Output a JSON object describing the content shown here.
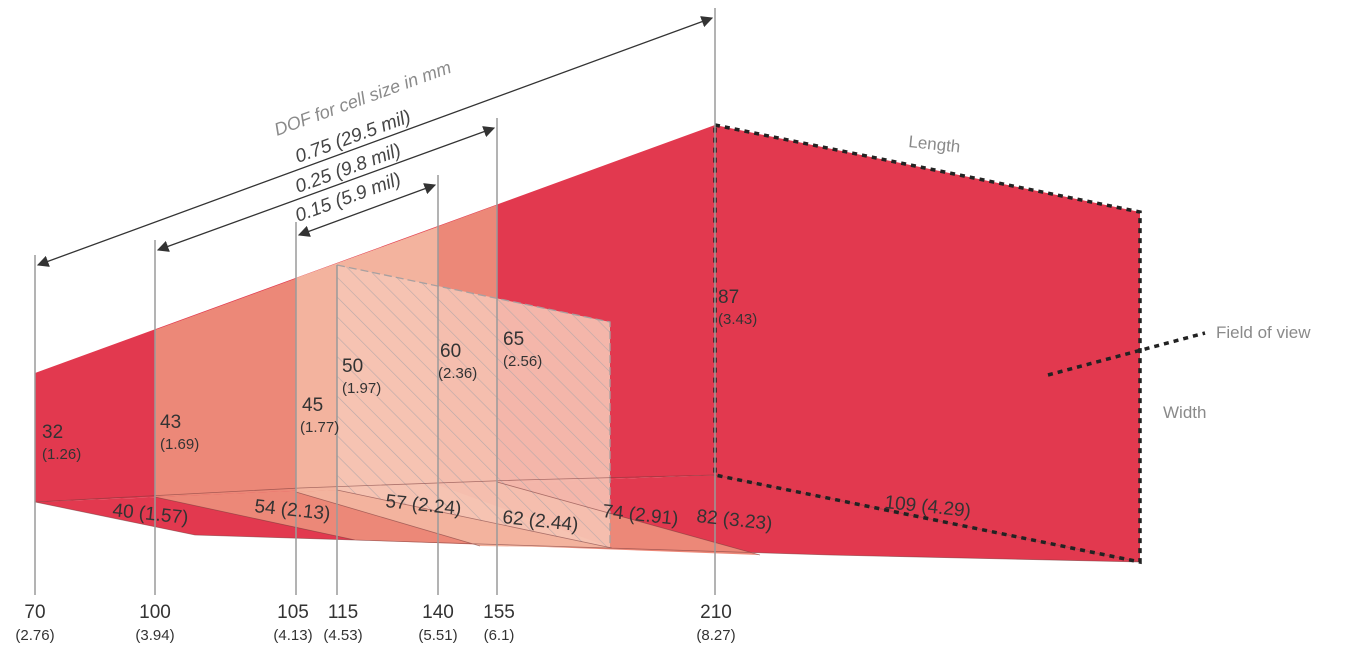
{
  "diagram": {
    "dof": {
      "title": "DOF for cell size in mm",
      "lines": [
        "0.75 (29.5 mil)",
        "0.25 (9.8 mil)",
        "0.15  (5.9 mil)"
      ]
    },
    "labels": {
      "length": "Length",
      "width": "Width",
      "field_of_view": "Field of view"
    },
    "heights": [
      {
        "value": "32",
        "sub": "(1.26)"
      },
      {
        "value": "43",
        "sub": "(1.69)"
      },
      {
        "value": "45",
        "sub": "(1.77)"
      },
      {
        "value": "50",
        "sub": "(1.97)"
      },
      {
        "value": "60",
        "sub": "(2.36)"
      },
      {
        "value": "65",
        "sub": "(2.56)"
      },
      {
        "value": "87",
        "sub": "(3.43)"
      }
    ],
    "widths": [
      "40 (1.57)",
      "54 (2.13)",
      "57 (2.24)",
      "62 (2.44)",
      "74 (2.91)",
      "82 (3.23)",
      "109 (4.29)"
    ],
    "distances": [
      {
        "value": "70",
        "sub": "(2.76)"
      },
      {
        "value": "100",
        "sub": "(3.94)"
      },
      {
        "value": "105",
        "sub": "(4.13)"
      },
      {
        "value": "115",
        "sub": "(4.53)"
      },
      {
        "value": "140",
        "sub": "(5.51)"
      },
      {
        "value": "155",
        "sub": "(6.1)"
      },
      {
        "value": "210",
        "sub": "(8.27)"
      }
    ],
    "colors": {
      "dark": "#e2394f",
      "mid": "#ec8878",
      "light": "#f3b39e",
      "pale": "#f6c4b4"
    }
  }
}
